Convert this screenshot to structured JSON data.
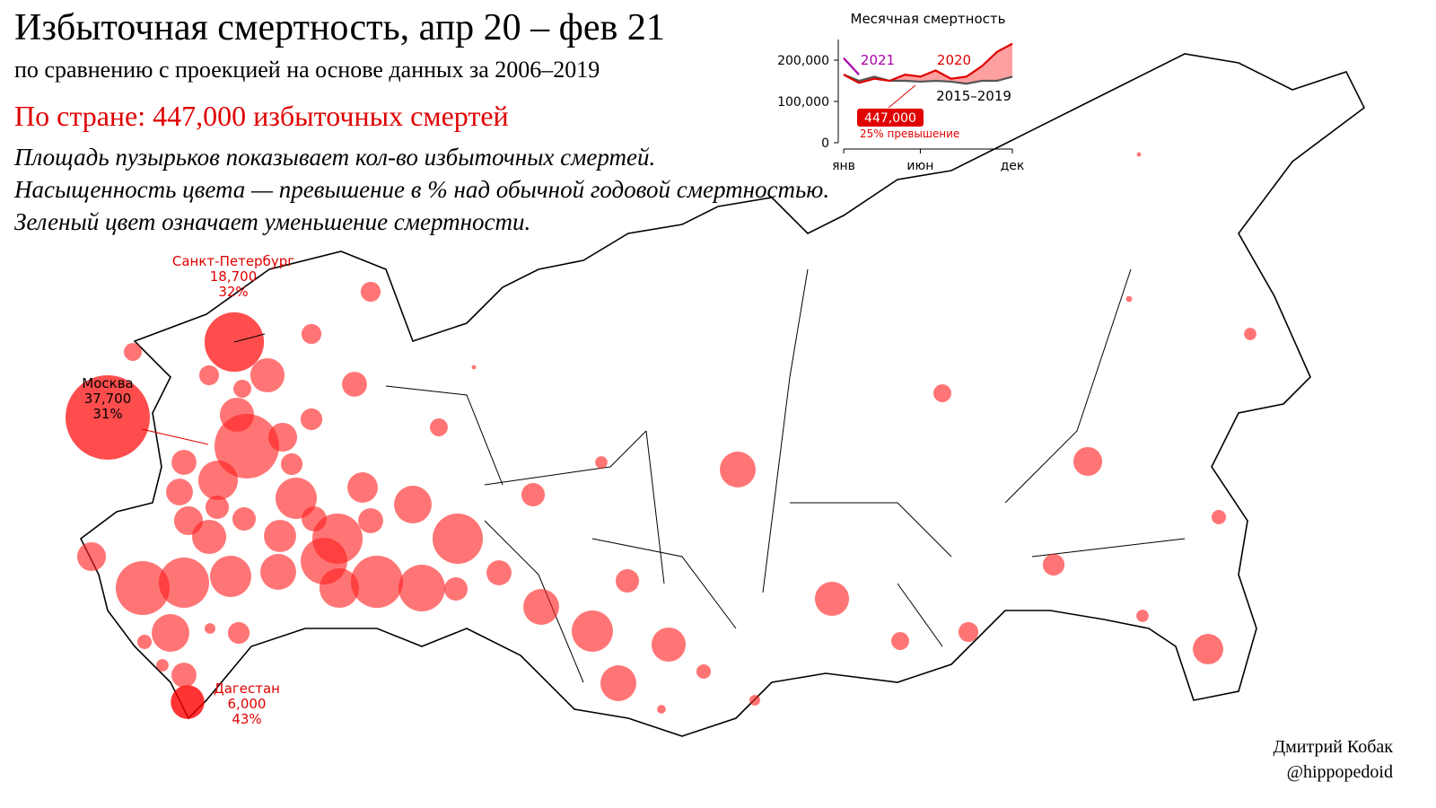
{
  "title": "Избыточная смертность, апр 20 – фев 21",
  "subtitle": "по сравнению с проекцией на основе данных за 2006–2019",
  "national_total": "По стране: 447,000 избыточных смертей",
  "notes": [
    "Площадь пузырьков показывает кол-во избыточных смертей.",
    "Насыщенность цвета — превышение в % над обычной годовой смертностью.",
    "Зеленый цвет означает уменьшение смертности."
  ],
  "credits": [
    "Дмитрий Кобак",
    "@hippopedoid"
  ],
  "regions": [
    {
      "name": "Москва",
      "value": 37700,
      "value_label": "37,700",
      "percent": 31,
      "percent_label": "31%"
    },
    {
      "name": "Санкт-Петербург",
      "value": 18700,
      "value_label": "18,700",
      "percent": 32,
      "percent_label": "32%"
    },
    {
      "name": "Дагестан",
      "value": 6000,
      "value_label": "6,000",
      "percent": 43,
      "percent_label": "43%"
    }
  ],
  "other_regions_excess": [
    2100,
    2100,
    3300,
    6200,
    2100,
    1700,
    2500,
    1700,
    6200,
    22100,
    4400,
    3300,
    2500,
    3800,
    8300,
    9000,
    4900,
    7500,
    2900,
    800,
    6800,
    1700,
    4400,
    200,
    800,
    100,
    100,
    4400,
    2900,
    2900,
    5500,
    3300,
    13400,
    3300,
    6200,
    13400,
    11500,
    6800,
    14400,
    11500,
    2900,
    3300,
    6800,
    2900,
    9000,
    6200,
    6800,
    1100,
    600,
    400,
    6200,
    1700,
    2100,
    2500,
    800,
    4900,
    1100,
    15400,
    13400,
    9000,
    600,
    7500,
    2500,
    1100,
    800,
    3300,
    4400,
    8300,
    1700
  ],
  "chart_data": {
    "type": "line",
    "title": "Месячная смертность",
    "categories": [
      "янв",
      null,
      null,
      null,
      null,
      "июн",
      null,
      null,
      null,
      null,
      null,
      "дек"
    ],
    "ylim": [
      0,
      250000
    ],
    "yticks": [
      0,
      {
        "value": 100000,
        "label": "100,000"
      },
      {
        "value": 200000,
        "label": "200,000"
      }
    ],
    "series": [
      {
        "name": "2015–2019",
        "color": "#555555",
        "values": [
          165000,
          150000,
          160000,
          150000,
          150000,
          148000,
          150000,
          148000,
          143000,
          150000,
          150000,
          160000
        ]
      },
      {
        "name": "2020",
        "color": "#e00000",
        "values": [
          165000,
          145000,
          155000,
          150000,
          165000,
          160000,
          175000,
          155000,
          160000,
          185000,
          220000,
          240000
        ]
      },
      {
        "name": "2021",
        "color": "#aa00aa",
        "values": [
          205000,
          165000,
          null,
          null,
          null,
          null,
          null,
          null,
          null,
          null,
          null,
          null
        ]
      }
    ],
    "annotations": [
      {
        "value": 447000,
        "label": "447,000"
      },
      "25% превышение"
    ]
  }
}
